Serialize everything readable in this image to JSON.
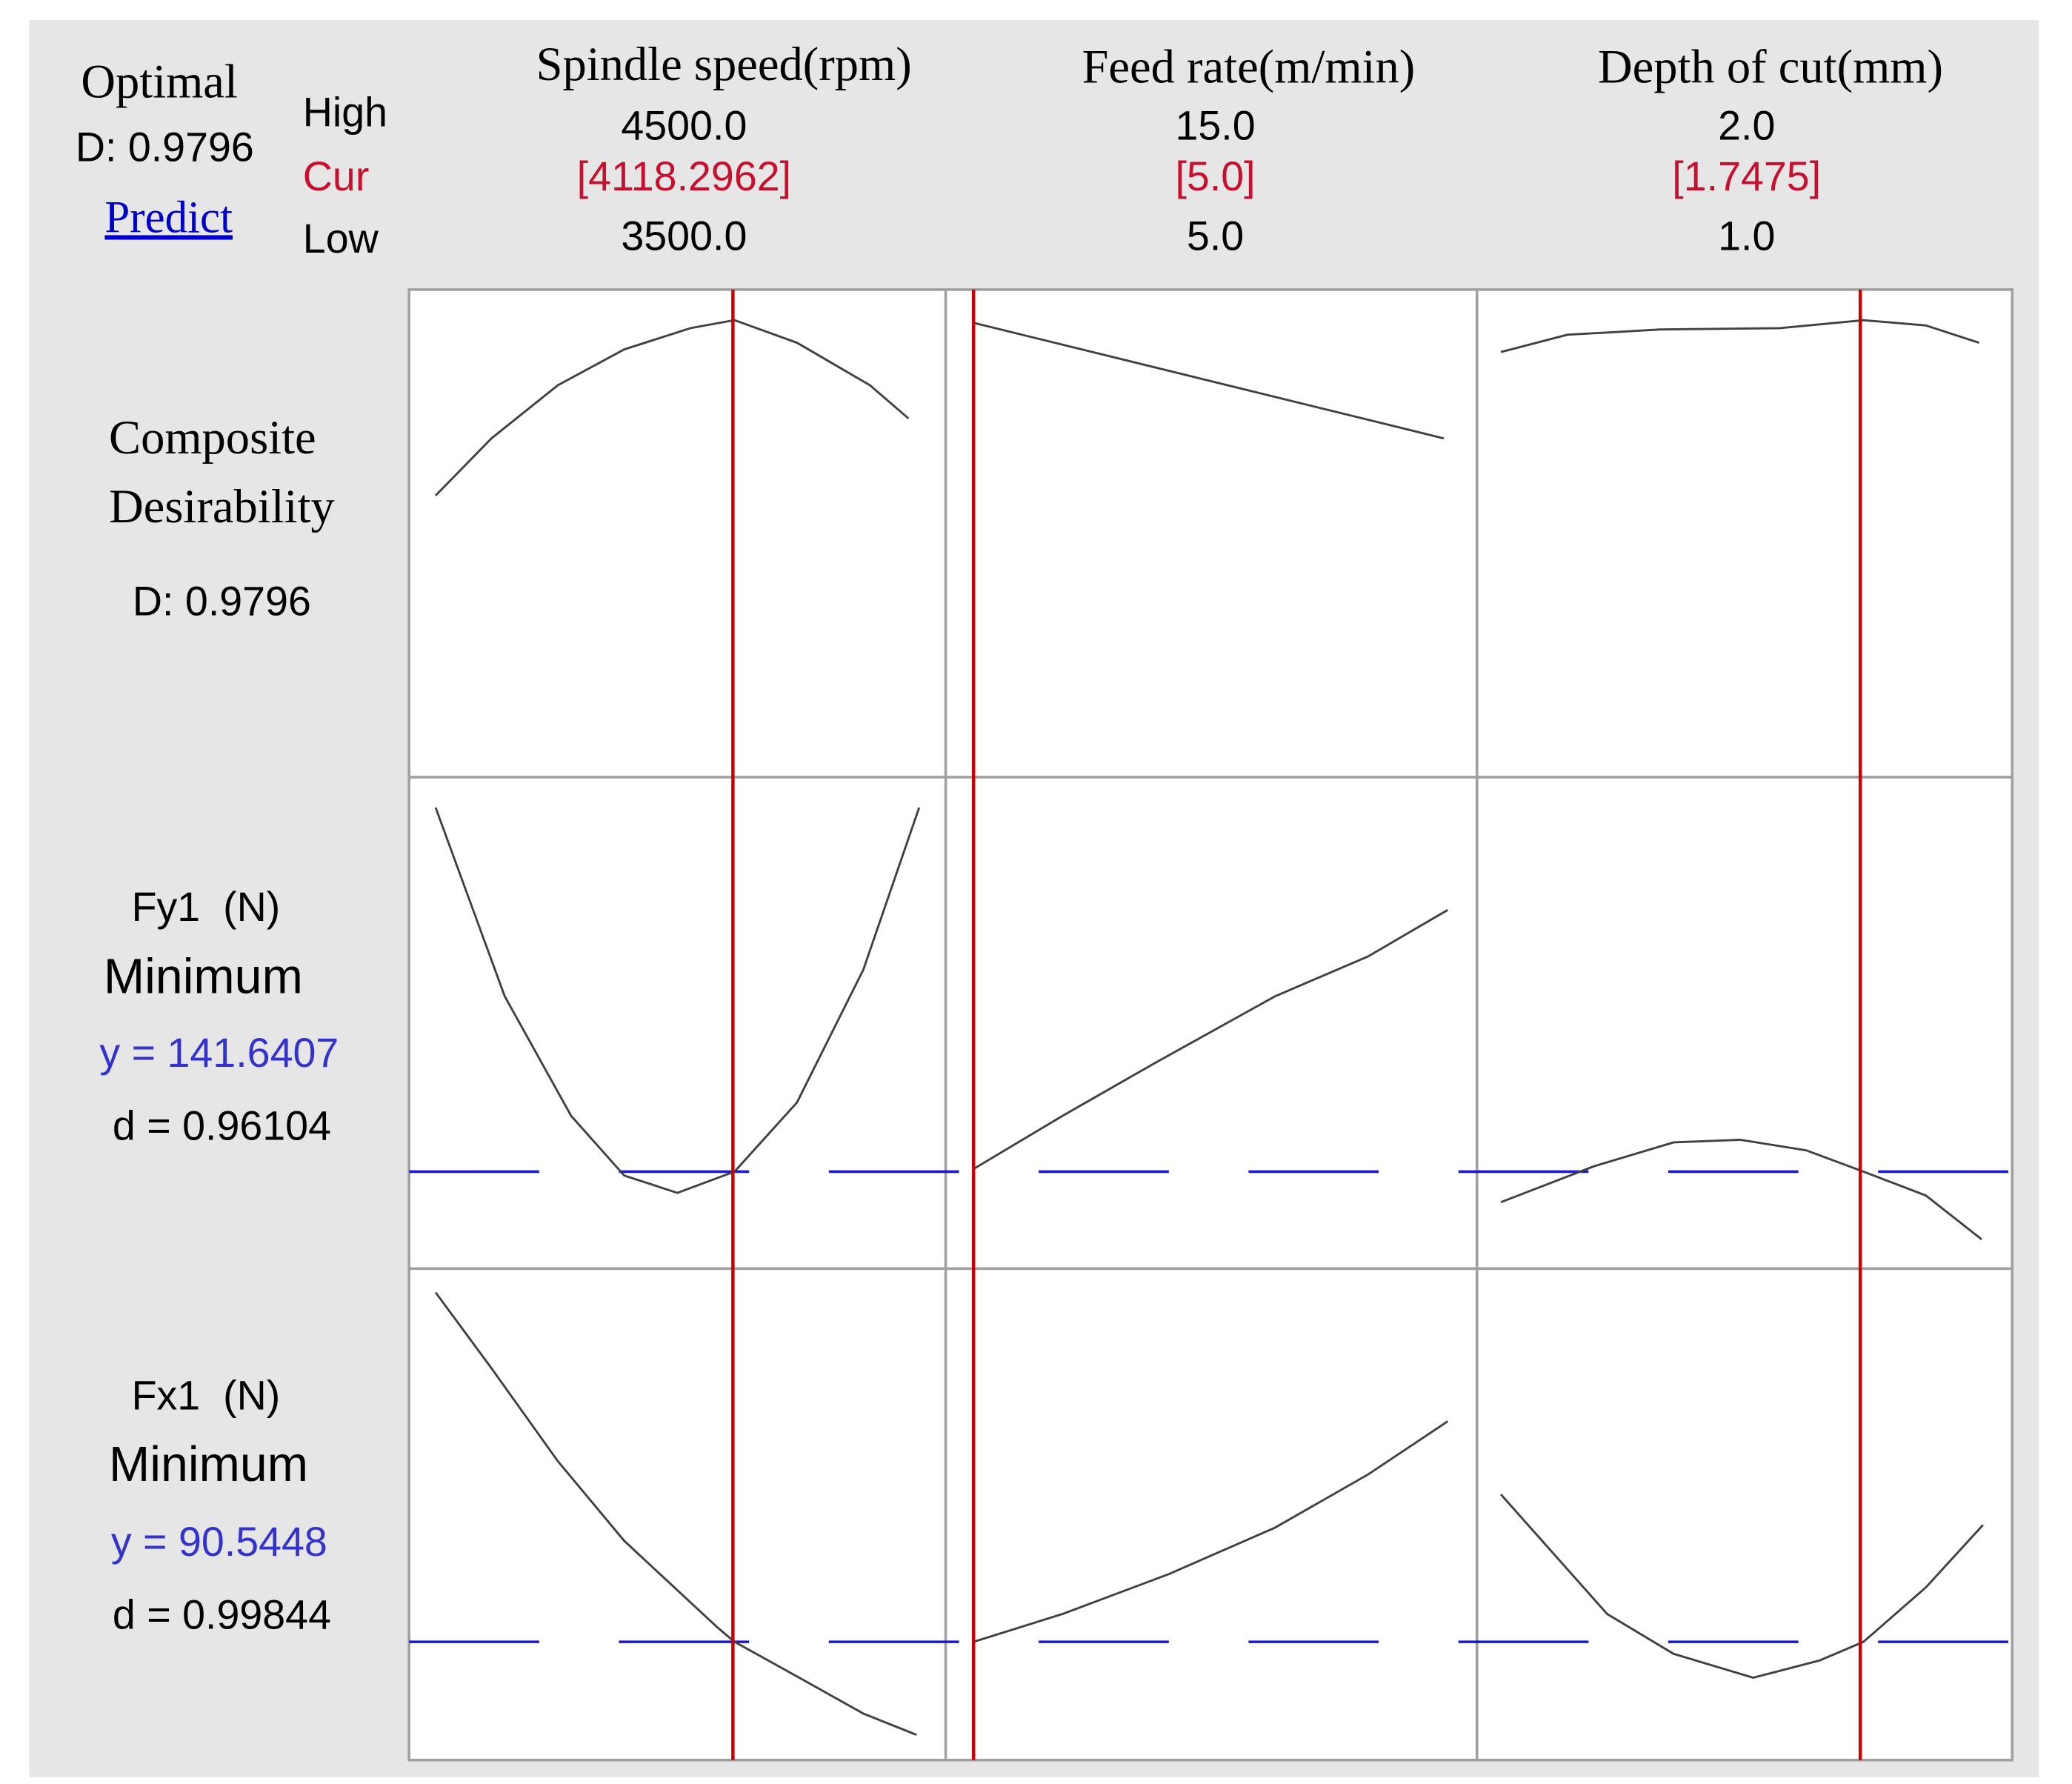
{
  "optimal": {
    "title": "Optimal",
    "d": "D: 0.9796",
    "predict": "Predict"
  },
  "setting_labels": {
    "high": "High",
    "cur": "Cur",
    "low": "Low"
  },
  "factors": [
    {
      "name": "Spindle speed(rpm)",
      "high": {
        "value": 4500,
        "label": "4500.0"
      },
      "cur": {
        "value": 4118.2962,
        "label": "[4118.2962]"
      },
      "low": {
        "value": 3500,
        "label": "3500.0"
      }
    },
    {
      "name": "Feed rate(m/min)",
      "high": {
        "value": 15,
        "label": "15.0"
      },
      "cur": {
        "value": 5,
        "label": "[5.0]"
      },
      "low": {
        "value": 5,
        "label": "5.0"
      }
    },
    {
      "name": "Depth of cut(mm)",
      "high": {
        "value": 2,
        "label": "2.0"
      },
      "cur": {
        "value": 1.7475,
        "label": "[1.7475]"
      },
      "low": {
        "value": 1,
        "label": "1.0"
      }
    }
  ],
  "responses": [
    {
      "name_line1": "Composite",
      "name_line2": "Desirability",
      "d": "D: 0.9796"
    },
    {
      "name": "Fy1  (N)",
      "goal": "Minimum",
      "y": "y = 141.6407",
      "d": "d = 0.96104"
    },
    {
      "name": "Fx1  (N)",
      "goal": "Minimum",
      "y": "y = 90.5448",
      "d": "d = 0.99844"
    }
  ]
}
